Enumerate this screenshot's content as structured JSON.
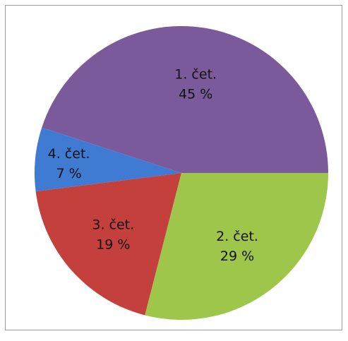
{
  "chart_data": {
    "type": "pie",
    "title": "",
    "slices": [
      {
        "label": "1. čet.",
        "value": 45,
        "value_label": "45 %",
        "color": "#7a5a9a"
      },
      {
        "label": "4. čet.",
        "value": 7,
        "value_label": "7 %",
        "color": "#3f7bd2"
      },
      {
        "label": "3. čet.",
        "value": 19,
        "value_label": "19 %",
        "color": "#c4403c"
      },
      {
        "label": "2. čet.",
        "value": 29,
        "value_label": "29 %",
        "color": "#9dc64a"
      }
    ],
    "legend": "none",
    "start_angle_note": "slices begin at 3 o'clock going counter-clockwise from 1. čet."
  }
}
